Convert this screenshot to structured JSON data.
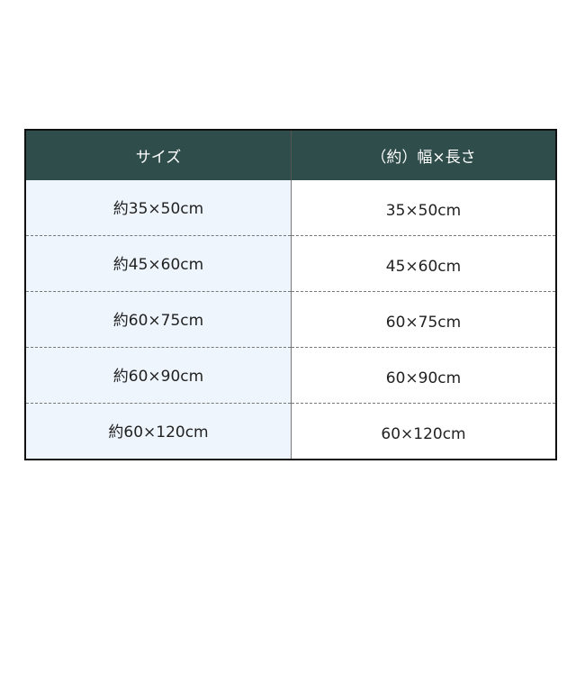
{
  "table": {
    "headers": [
      "サイズ",
      "（約）幅×長さ"
    ],
    "rows": [
      [
        "約35×50cm",
        "35×50cm"
      ],
      [
        "約45×60cm",
        "45×60cm"
      ],
      [
        "約60×75cm",
        "60×75cm"
      ],
      [
        "約60×90cm",
        "60×90cm"
      ],
      [
        "約60×120cm",
        "60×120cm"
      ]
    ]
  },
  "colors": {
    "header_bg": "#2f4d4a",
    "size_cell_bg": "#eef5fd"
  }
}
